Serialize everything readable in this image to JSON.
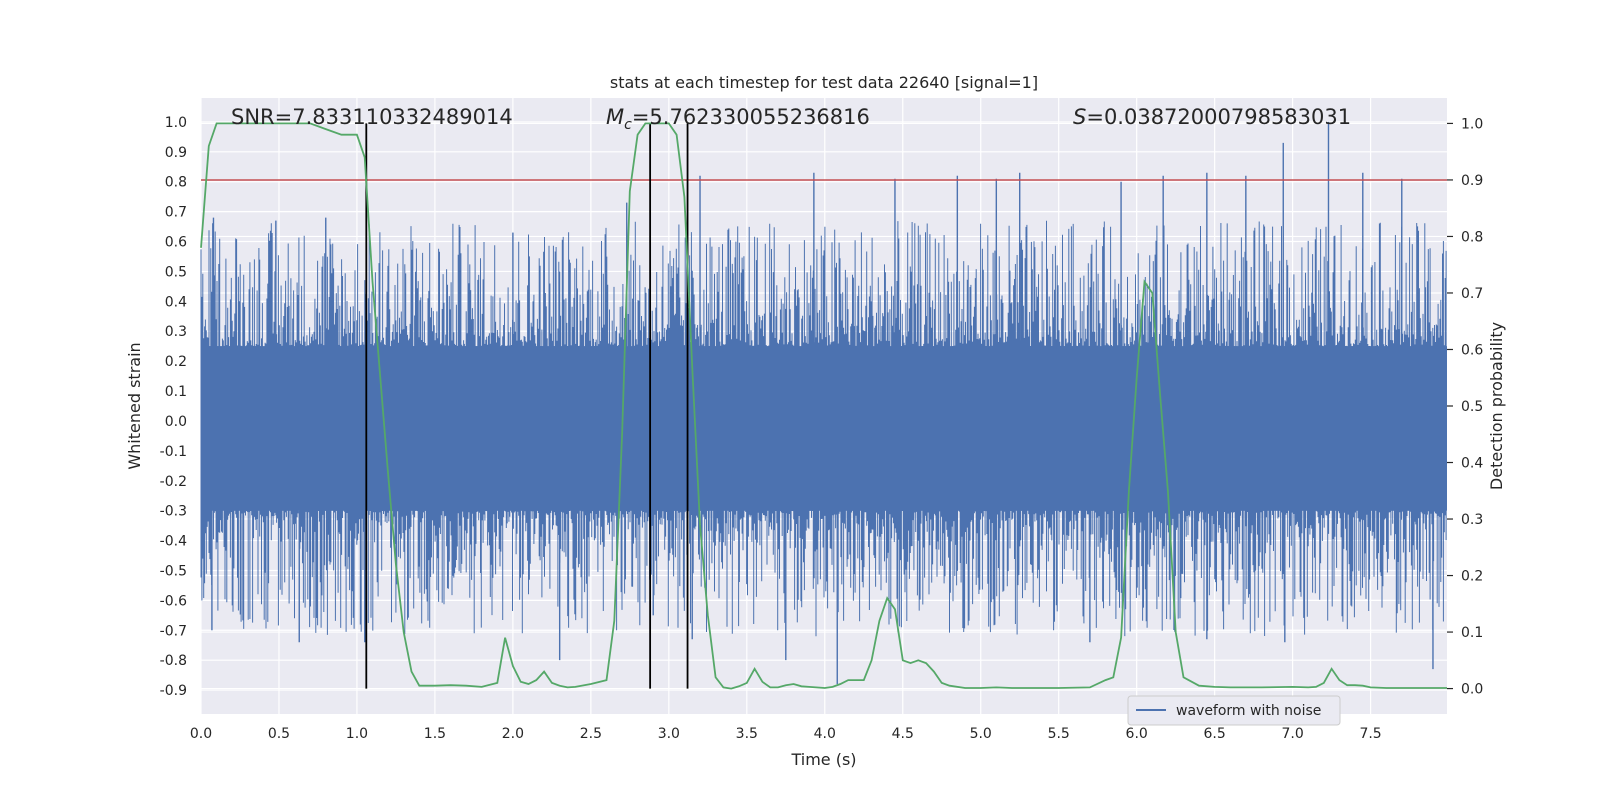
{
  "chart_data": {
    "type": "line",
    "title": "stats at each timestep for test data 22640 [signal=1]",
    "xlabel": "Time (s)",
    "ylabel_left": "Whitened strain",
    "ylabel_right": "Detection probability",
    "xlim": [
      0.0,
      7.99
    ],
    "ylim_left": [
      -0.98,
      1.08
    ],
    "ylim_right": [
      -0.045,
      1.045
    ],
    "x_ticks": [
      "0.0",
      "0.5",
      "1.0",
      "1.5",
      "2.0",
      "2.5",
      "3.0",
      "3.5",
      "4.0",
      "4.5",
      "5.0",
      "5.5",
      "6.0",
      "6.5",
      "7.0",
      "7.5"
    ],
    "x_tick_values": [
      0.0,
      0.5,
      1.0,
      1.5,
      2.0,
      2.5,
      3.0,
      3.5,
      4.0,
      4.5,
      5.0,
      5.5,
      6.0,
      6.5,
      7.0,
      7.5
    ],
    "y_left_ticks": [
      "1.0",
      "0.9",
      "0.8",
      "0.7",
      "0.6",
      "0.5",
      "0.4",
      "0.3",
      "0.2",
      "0.1",
      "0.0",
      "-0.1",
      "-0.2",
      "-0.3",
      "-0.4",
      "-0.5",
      "-0.6",
      "-0.7",
      "-0.8",
      "-0.9"
    ],
    "y_left_tick_values": [
      1.0,
      0.9,
      0.8,
      0.7,
      0.6,
      0.5,
      0.4,
      0.3,
      0.2,
      0.1,
      0.0,
      -0.1,
      -0.2,
      -0.3,
      -0.4,
      -0.5,
      -0.6,
      -0.7,
      -0.8,
      -0.9
    ],
    "y_right_ticks": [
      "1.0",
      "0.9",
      "0.8",
      "0.7",
      "0.6",
      "0.5",
      "0.4",
      "0.3",
      "0.2",
      "0.1",
      "0.0"
    ],
    "y_right_tick_values": [
      1.0,
      0.9,
      0.8,
      0.7,
      0.6,
      0.5,
      0.4,
      0.3,
      0.2,
      0.1,
      0.0
    ],
    "annotations": {
      "snr": "SNR=7.833110332489014",
      "mc_symbol": "M",
      "mc_sub": "c",
      "mc_value": "=5.762330055236816",
      "s_symbol": "S",
      "s_value": "=0.03872000798583031"
    },
    "series": [
      {
        "name": "waveform with noise",
        "color": "#4c72b0",
        "kind": "noise",
        "band": [
          -0.3,
          0.25
        ],
        "spread": 0.42,
        "peaks": [
          [
            0.08,
            0.68
          ],
          [
            0.48,
            0.67
          ],
          [
            0.8,
            0.68
          ],
          [
            1.06,
            0.82
          ],
          [
            2.0,
            0.63
          ],
          [
            2.73,
            0.73
          ],
          [
            3.2,
            0.82
          ],
          [
            3.93,
            0.83
          ],
          [
            4.45,
            0.81
          ],
          [
            4.85,
            0.82
          ],
          [
            5.1,
            0.81
          ],
          [
            5.25,
            0.83
          ],
          [
            5.9,
            0.8
          ],
          [
            6.17,
            0.82
          ],
          [
            6.45,
            0.83
          ],
          [
            6.7,
            0.82
          ],
          [
            6.94,
            0.93
          ],
          [
            7.23,
            1.0
          ],
          [
            7.45,
            0.83
          ],
          [
            7.7,
            0.81
          ]
        ],
        "troughs": [
          [
            0.07,
            -0.7
          ],
          [
            0.63,
            -0.74
          ],
          [
            1.05,
            -0.74
          ],
          [
            2.3,
            -0.8
          ],
          [
            2.9,
            -0.65
          ],
          [
            3.15,
            -0.73
          ],
          [
            3.75,
            -0.8
          ],
          [
            4.08,
            -0.88
          ],
          [
            5.7,
            -0.74
          ],
          [
            6.45,
            -0.73
          ],
          [
            6.95,
            -0.74
          ],
          [
            7.9,
            -0.83
          ]
        ]
      },
      {
        "name": "detection probability",
        "color": "#55a868",
        "axis": "right",
        "x": [
          0.0,
          0.05,
          0.1,
          0.2,
          0.3,
          0.5,
          0.7,
          0.8,
          0.9,
          1.0,
          1.05,
          1.1,
          1.15,
          1.2,
          1.25,
          1.3,
          1.35,
          1.4,
          1.5,
          1.6,
          1.7,
          1.8,
          1.9,
          1.95,
          2.0,
          2.05,
          2.1,
          2.15,
          2.2,
          2.25,
          2.3,
          2.35,
          2.4,
          2.5,
          2.6,
          2.65,
          2.7,
          2.75,
          2.8,
          2.85,
          2.9,
          3.0,
          3.05,
          3.1,
          3.15,
          3.2,
          3.25,
          3.3,
          3.35,
          3.4,
          3.45,
          3.5,
          3.55,
          3.6,
          3.65,
          3.7,
          3.75,
          3.8,
          3.85,
          3.9,
          4.0,
          4.05,
          4.1,
          4.15,
          4.2,
          4.25,
          4.3,
          4.35,
          4.4,
          4.45,
          4.5,
          4.55,
          4.6,
          4.65,
          4.7,
          4.75,
          4.8,
          4.9,
          5.0,
          5.1,
          5.2,
          5.3,
          5.5,
          5.7,
          5.8,
          5.85,
          5.9,
          5.95,
          6.0,
          6.05,
          6.1,
          6.15,
          6.2,
          6.25,
          6.3,
          6.4,
          6.5,
          6.6,
          6.8,
          7.0,
          7.1,
          7.15,
          7.2,
          7.25,
          7.3,
          7.35,
          7.4,
          7.45,
          7.5,
          7.6,
          7.7,
          7.8,
          7.9,
          7.99
        ],
        "y": [
          0.78,
          0.96,
          1.0,
          1.0,
          1.0,
          1.0,
          1.0,
          0.99,
          0.98,
          0.98,
          0.94,
          0.72,
          0.55,
          0.38,
          0.22,
          0.1,
          0.03,
          0.005,
          0.005,
          0.006,
          0.005,
          0.003,
          0.01,
          0.09,
          0.04,
          0.012,
          0.008,
          0.015,
          0.03,
          0.01,
          0.005,
          0.002,
          0.003,
          0.008,
          0.015,
          0.12,
          0.45,
          0.88,
          0.98,
          1.0,
          1.0,
          1.0,
          0.98,
          0.87,
          0.57,
          0.29,
          0.13,
          0.02,
          0.002,
          0.0,
          0.004,
          0.01,
          0.035,
          0.012,
          0.002,
          0.002,
          0.006,
          0.008,
          0.004,
          0.003,
          0.001,
          0.003,
          0.008,
          0.015,
          0.015,
          0.015,
          0.05,
          0.12,
          0.16,
          0.14,
          0.05,
          0.045,
          0.05,
          0.045,
          0.03,
          0.01,
          0.005,
          0.001,
          0.001,
          0.002,
          0.001,
          0.001,
          0.001,
          0.002,
          0.015,
          0.02,
          0.09,
          0.35,
          0.55,
          0.72,
          0.7,
          0.52,
          0.35,
          0.1,
          0.02,
          0.005,
          0.003,
          0.002,
          0.002,
          0.003,
          0.002,
          0.003,
          0.01,
          0.035,
          0.015,
          0.006,
          0.006,
          0.005,
          0.002,
          0.001,
          0.001,
          0.001,
          0.001,
          0.001
        ]
      }
    ],
    "threshold": {
      "value": 0.9,
      "axis": "right",
      "color": "#c44e52"
    },
    "vlines": [
      1.06,
      2.88,
      3.12
    ],
    "legend": {
      "label": "waveform with noise",
      "position": "lower-right"
    }
  }
}
